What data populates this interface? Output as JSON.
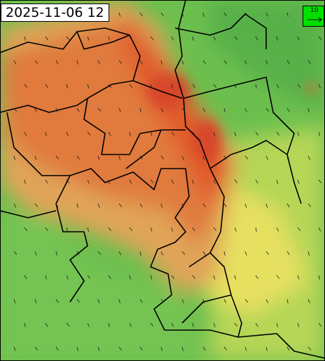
{
  "header": {
    "timestamp": "2025-11-06 12"
  },
  "legend": {
    "wind_scale": "10"
  }
}
